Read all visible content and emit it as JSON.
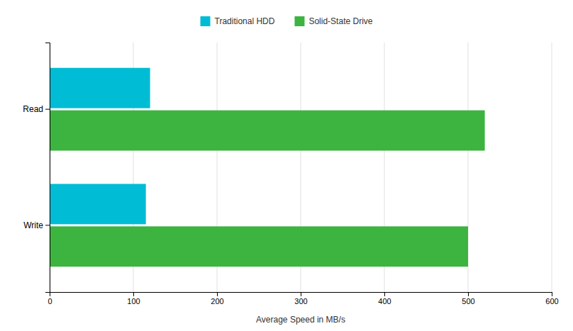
{
  "chart_data": {
    "type": "bar",
    "orientation": "horizontal",
    "categories": [
      "Read",
      "Write"
    ],
    "series": [
      {
        "name": "Traditional HDD",
        "color": "#00BCD4",
        "values": [
          120,
          115
        ]
      },
      {
        "name": "Solid-State Drive",
        "color": "#3DB340",
        "values": [
          520,
          500
        ]
      }
    ],
    "xlabel": "Average Speed in MB/s",
    "xlim": [
      0,
      600
    ],
    "xticks": [
      0,
      100,
      200,
      300,
      400,
      500,
      600
    ],
    "grid": true,
    "legend": "top"
  }
}
